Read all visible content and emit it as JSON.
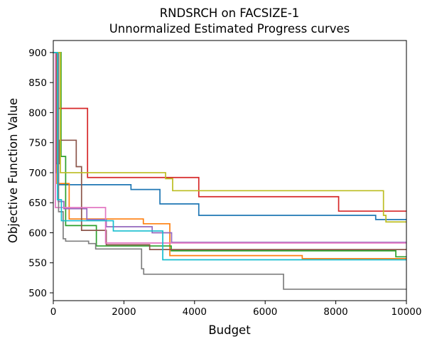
{
  "chart_data": {
    "type": "line",
    "step": true,
    "title": "RNDSRCH on FACSIZE-1",
    "subtitle": "Unnormalized Estimated Progress curves",
    "xlabel": "Budget",
    "ylabel": "Objective Function Value",
    "xlim": [
      0,
      10000
    ],
    "ylim": [
      487,
      920
    ],
    "x_ticks": [
      0,
      2000,
      4000,
      6000,
      8000,
      10000
    ],
    "x_tick_labels": [
      "0",
      "2000",
      "4000",
      "6000",
      "8000",
      "10000"
    ],
    "y_ticks": [
      500,
      550,
      600,
      650,
      700,
      750,
      800,
      850,
      900
    ],
    "y_tick_labels": [
      "500",
      "550",
      "600",
      "650",
      "700",
      "750",
      "800",
      "850",
      "900"
    ],
    "grid": false,
    "legend": false,
    "series": [
      {
        "color": "#1f77b4",
        "points": [
          [
            0,
            900
          ],
          [
            80,
            900
          ],
          [
            80,
            700
          ],
          [
            150,
            700
          ],
          [
            150,
            680
          ],
          [
            2200,
            680
          ],
          [
            2200,
            672
          ],
          [
            3020,
            672
          ],
          [
            3020,
            648
          ],
          [
            4120,
            648
          ],
          [
            4120,
            629
          ],
          [
            9130,
            629
          ],
          [
            9130,
            622
          ],
          [
            10000,
            622
          ]
        ]
      },
      {
        "color": "#ff7f0e",
        "points": [
          [
            0,
            900
          ],
          [
            100,
            900
          ],
          [
            100,
            682
          ],
          [
            450,
            682
          ],
          [
            450,
            623
          ],
          [
            2550,
            623
          ],
          [
            2550,
            615
          ],
          [
            3300,
            615
          ],
          [
            3300,
            562
          ],
          [
            7050,
            562
          ],
          [
            7050,
            557
          ],
          [
            10000,
            557
          ]
        ]
      },
      {
        "color": "#2ca02c",
        "points": [
          [
            0,
            900
          ],
          [
            220,
            900
          ],
          [
            220,
            727
          ],
          [
            350,
            727
          ],
          [
            350,
            612
          ],
          [
            1220,
            612
          ],
          [
            1220,
            578
          ],
          [
            3340,
            578
          ],
          [
            3340,
            570
          ],
          [
            9700,
            570
          ],
          [
            9700,
            560
          ],
          [
            10000,
            560
          ]
        ]
      },
      {
        "color": "#d62728",
        "points": [
          [
            0,
            900
          ],
          [
            150,
            900
          ],
          [
            150,
            807
          ],
          [
            970,
            807
          ],
          [
            970,
            692
          ],
          [
            4120,
            692
          ],
          [
            4120,
            660
          ],
          [
            8080,
            660
          ],
          [
            8080,
            636
          ],
          [
            10000,
            636
          ]
        ]
      },
      {
        "color": "#9467bd",
        "points": [
          [
            0,
            900
          ],
          [
            140,
            900
          ],
          [
            140,
            652
          ],
          [
            300,
            652
          ],
          [
            300,
            640
          ],
          [
            950,
            640
          ],
          [
            950,
            622
          ],
          [
            1500,
            622
          ],
          [
            1500,
            610
          ],
          [
            2800,
            610
          ],
          [
            2800,
            600
          ],
          [
            3350,
            600
          ],
          [
            3350,
            584
          ],
          [
            10000,
            584
          ]
        ]
      },
      {
        "color": "#8c564b",
        "points": [
          [
            0,
            900
          ],
          [
            80,
            900
          ],
          [
            80,
            715
          ],
          [
            180,
            715
          ],
          [
            180,
            754
          ],
          [
            650,
            754
          ],
          [
            650,
            710
          ],
          [
            800,
            710
          ],
          [
            800,
            604
          ],
          [
            1500,
            604
          ],
          [
            1500,
            580
          ],
          [
            2730,
            580
          ],
          [
            2730,
            572
          ],
          [
            10000,
            572
          ]
        ]
      },
      {
        "color": "#e377c2",
        "points": [
          [
            0,
            900
          ],
          [
            60,
            900
          ],
          [
            60,
            642
          ],
          [
            1480,
            642
          ],
          [
            1480,
            583
          ],
          [
            10000,
            583
          ]
        ]
      },
      {
        "color": "#7f7f7f",
        "points": [
          [
            0,
            900
          ],
          [
            150,
            900
          ],
          [
            150,
            635
          ],
          [
            280,
            635
          ],
          [
            280,
            590
          ],
          [
            350,
            590
          ],
          [
            350,
            586
          ],
          [
            1000,
            586
          ],
          [
            1000,
            582
          ],
          [
            1200,
            582
          ],
          [
            1200,
            573
          ],
          [
            2500,
            573
          ],
          [
            2500,
            540
          ],
          [
            2560,
            540
          ],
          [
            2560,
            531
          ],
          [
            6520,
            531
          ],
          [
            6520,
            506
          ],
          [
            10000,
            506
          ]
        ]
      },
      {
        "color": "#bcbd22",
        "points": [
          [
            0,
            900
          ],
          [
            200,
            900
          ],
          [
            200,
            700
          ],
          [
            3180,
            700
          ],
          [
            3180,
            690
          ],
          [
            3380,
            690
          ],
          [
            3380,
            670
          ],
          [
            9350,
            670
          ],
          [
            9350,
            629
          ],
          [
            9420,
            629
          ],
          [
            9420,
            618
          ],
          [
            10000,
            618
          ]
        ]
      },
      {
        "color": "#17becf",
        "points": [
          [
            0,
            900
          ],
          [
            120,
            900
          ],
          [
            120,
            655
          ],
          [
            230,
            655
          ],
          [
            230,
            620
          ],
          [
            1700,
            620
          ],
          [
            1700,
            603
          ],
          [
            3100,
            603
          ],
          [
            3100,
            555
          ],
          [
            10000,
            555
          ]
        ]
      }
    ]
  }
}
